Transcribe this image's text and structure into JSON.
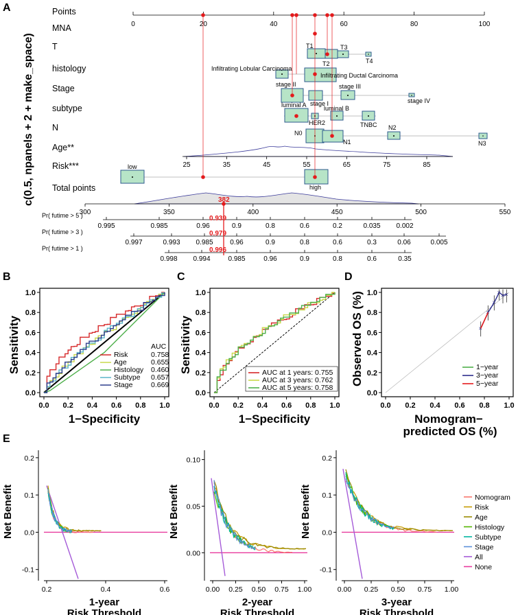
{
  "panels": {
    "A": "A",
    "B": "B",
    "C": "C",
    "D": "D",
    "E": "E"
  },
  "nomogram": {
    "ylabel": "c(0.5, npanels + 2 + make_space)",
    "rows": [
      "Points",
      "MNA",
      "T",
      "histology",
      "Stage",
      "subtype",
      "N",
      "Age**",
      "Risk***",
      "Total points"
    ],
    "points_ticks": [
      0,
      20,
      40,
      60,
      80,
      100
    ],
    "age_ticks": [
      25,
      35,
      45,
      55,
      65,
      75,
      85
    ],
    "total_ticks": [
      300,
      350,
      400,
      450,
      500,
      550
    ],
    "total_value": "382",
    "prob_rows": [
      {
        "label": "Pr( futime > 5 )",
        "ticks": [
          "0.995",
          "0.985",
          "0.96",
          "0.9",
          "0.8",
          "0.6",
          "0.2",
          "0.035",
          "0.002"
        ],
        "value": "0.939"
      },
      {
        "label": "Pr( futime > 3 )",
        "ticks": [
          "0.997",
          "0.993",
          "0.985",
          "0.96",
          "0.9",
          "0.8",
          "0.6",
          "0.3",
          "0.06",
          "0.005"
        ],
        "value": "0.979"
      },
      {
        "label": "Pr( futime > 1 )",
        "ticks": [
          "0.998",
          "0.994",
          "0.985",
          "0.96",
          "0.9",
          "0.8",
          "0.6",
          "0.35"
        ],
        "value": "0.996"
      }
    ],
    "T_levels": [
      "T1",
      "T2",
      "T3",
      "T4"
    ],
    "histology_levels": [
      "Infiltrating Lobular Carcinoma",
      "Infiltrating Ductal Carcinoma"
    ],
    "stage_levels": [
      "stage II",
      "stage I",
      "stage III",
      "stage IV"
    ],
    "subtype_levels": [
      "luminal A",
      "HER2",
      "luminal B",
      "TNBC"
    ],
    "N_levels": [
      "N0",
      "N1",
      "N2",
      "N3"
    ],
    "risk_levels": [
      "low",
      "high"
    ]
  },
  "chart_data": [
    {
      "panel": "B",
      "type": "line",
      "title": "",
      "xlabel": "1−Specificity",
      "ylabel": "Sensitivity",
      "xlim": [
        0,
        1
      ],
      "ylim": [
        0,
        1
      ],
      "ticks": [
        "0.0",
        "0.2",
        "0.4",
        "0.6",
        "0.8",
        "1.0"
      ],
      "legend_title": "AUC",
      "series": [
        {
          "name": "Risk",
          "auc": "0.758",
          "color": "#d62728"
        },
        {
          "name": "Age",
          "auc": "0.655",
          "color": "#c9d84a"
        },
        {
          "name": "Histology",
          "auc": "0.460",
          "color": "#4daf4a"
        },
        {
          "name": "Subtype",
          "auc": "0.657",
          "color": "#5ab4c8"
        },
        {
          "name": "Stage",
          "auc": "0.669",
          "color": "#2c3e8c"
        }
      ]
    },
    {
      "panel": "C",
      "type": "line",
      "title": "",
      "xlabel": "1−Specificity",
      "ylabel": "Sensitivity",
      "xlim": [
        0,
        1
      ],
      "ylim": [
        0,
        1
      ],
      "ticks": [
        "0.0",
        "0.2",
        "0.4",
        "0.6",
        "0.8",
        "1.0"
      ],
      "series": [
        {
          "name": "AUC at 1 years: 0.755",
          "color": "#d62728"
        },
        {
          "name": "AUC at 3 years: 0.762",
          "color": "#c9d84a"
        },
        {
          "name": "AUC at 5 years: 0.758",
          "color": "#4daf4a"
        }
      ]
    },
    {
      "panel": "D",
      "type": "line",
      "title": "",
      "xlabel": "Nomogram−predicted OS (%)",
      "xlabel1": "Nomogram−",
      "xlabel2": "predicted OS (%)",
      "ylabel": "Observed OS (%)",
      "xlim": [
        0,
        1
      ],
      "ylim": [
        0,
        1
      ],
      "ticks": [
        "0.0",
        "0.2",
        "0.4",
        "0.6",
        "0.8",
        "1.0"
      ],
      "series": [
        {
          "name": "1−year",
          "color": "#4daf4a"
        },
        {
          "name": "3−year",
          "color": "#2c2c8c"
        },
        {
          "name": "5−year",
          "color": "#e41a1c"
        }
      ]
    },
    {
      "panel": "E",
      "type": "line",
      "ylabel": "Net Benefit",
      "subplots": [
        {
          "title1": "1-year",
          "title2": "Risk Threshold",
          "yticks": [
            "0.2",
            "0.1",
            "0.0",
            "-0.1"
          ],
          "xticks": [
            "0.2",
            "0.4",
            "0.6"
          ]
        },
        {
          "title1": "2-year",
          "title2": "Risk Threshold",
          "yticks": [
            "0.10",
            "0.05",
            "0.00"
          ],
          "xticks": [
            "0.00",
            "0.25",
            "0.50",
            "0.75",
            "1.00"
          ]
        },
        {
          "title1": "3-year",
          "title2": "Risk Threshold",
          "yticks": [
            "0.2",
            "0.1",
            "0.0",
            "-0.1"
          ],
          "xticks": [
            "0.00",
            "0.25",
            "0.50",
            "0.75",
            "1.00"
          ]
        }
      ],
      "series": [
        {
          "name": "Nomogram",
          "color": "#f8766d"
        },
        {
          "name": "Risk",
          "color": "#c49a00"
        },
        {
          "name": "Age",
          "color": "#9a8a00"
        },
        {
          "name": "Histology",
          "color": "#53b400"
        },
        {
          "name": "Subtype",
          "color": "#00b6a0"
        },
        {
          "name": "Stage",
          "color": "#5a8fd8"
        },
        {
          "name": "All",
          "color": "#a55bd8"
        },
        {
          "name": "None",
          "color": "#e83a9e"
        }
      ]
    }
  ]
}
